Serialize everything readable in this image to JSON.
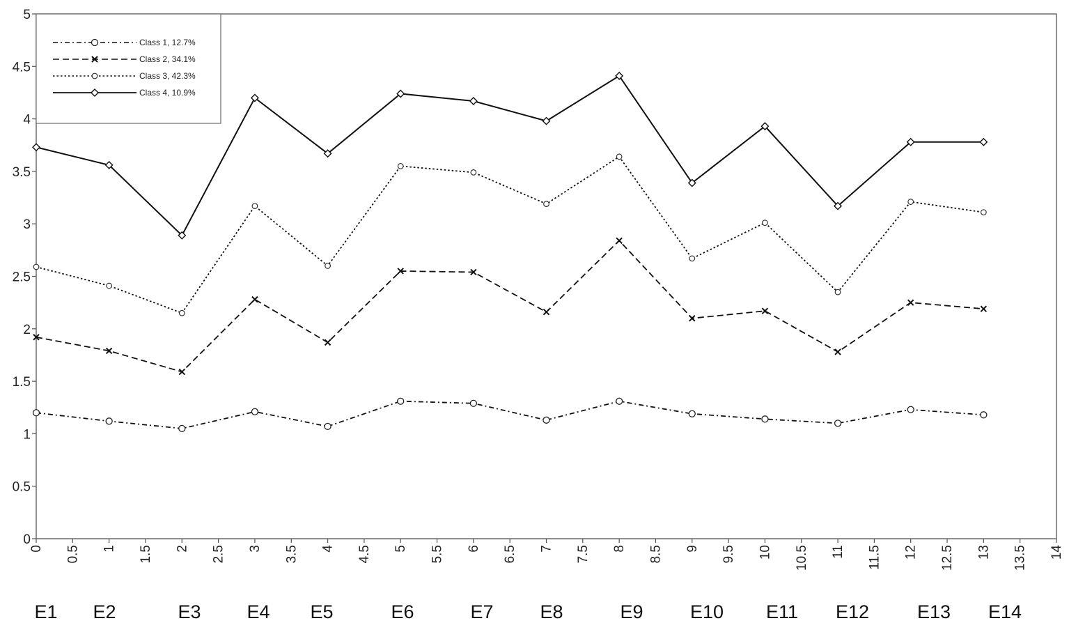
{
  "chart_data": {
    "type": "line",
    "x": [
      0,
      1,
      2,
      3,
      4,
      5,
      6,
      7,
      8,
      9,
      10,
      11,
      12,
      13
    ],
    "xlim": [
      0,
      14
    ],
    "ylim": [
      0,
      5
    ],
    "x_ticks": [
      "0",
      "0.5",
      "1",
      "1.5",
      "2",
      "2.5",
      "3",
      "3.5",
      "4",
      "4.5",
      "5",
      "5.5",
      "6",
      "6.5",
      "7",
      "7.5",
      "8",
      "8.5",
      "9",
      "9.5",
      "10",
      "10.5",
      "11",
      "11.5",
      "12",
      "12.5",
      "13",
      "13.5",
      "14"
    ],
    "y_ticks": [
      "0",
      "0.5",
      "1",
      "1.5",
      "2",
      "2.5",
      "3",
      "3.5",
      "4",
      "4.5",
      "5"
    ],
    "item_labels": [
      "E1",
      "E2",
      "E3",
      "E4",
      "E5",
      "E6",
      "E7",
      "E8",
      "E9",
      "E10",
      "E11",
      "E12",
      "E13",
      "E14"
    ],
    "legend_position": "top-left",
    "grid": false,
    "series": [
      {
        "name": "Class 1, 12.7%",
        "line_style": "dash-dot",
        "marker": "circle",
        "values": [
          1.2,
          1.12,
          1.05,
          1.21,
          1.07,
          1.31,
          1.29,
          1.13,
          1.31,
          1.19,
          1.14,
          1.1,
          1.23,
          1.18
        ]
      },
      {
        "name": "Class 2, 34.1%",
        "line_style": "dashed",
        "marker": "x",
        "values": [
          1.92,
          1.79,
          1.59,
          2.28,
          1.87,
          2.55,
          2.54,
          2.16,
          2.84,
          2.1,
          2.17,
          1.78,
          2.25,
          2.19
        ]
      },
      {
        "name": "Class 3, 42.3%",
        "line_style": "dotted",
        "marker": "small-circle",
        "values": [
          2.59,
          2.41,
          2.15,
          3.17,
          2.6,
          3.55,
          3.49,
          3.19,
          3.64,
          2.67,
          3.01,
          2.35,
          3.21,
          3.11
        ]
      },
      {
        "name": "Class 4, 10.9%",
        "line_style": "solid",
        "marker": "diamond",
        "values": [
          3.73,
          3.56,
          2.89,
          4.2,
          3.67,
          4.24,
          4.17,
          3.98,
          4.41,
          3.39,
          3.93,
          3.17,
          3.78,
          3.78
        ]
      }
    ]
  }
}
